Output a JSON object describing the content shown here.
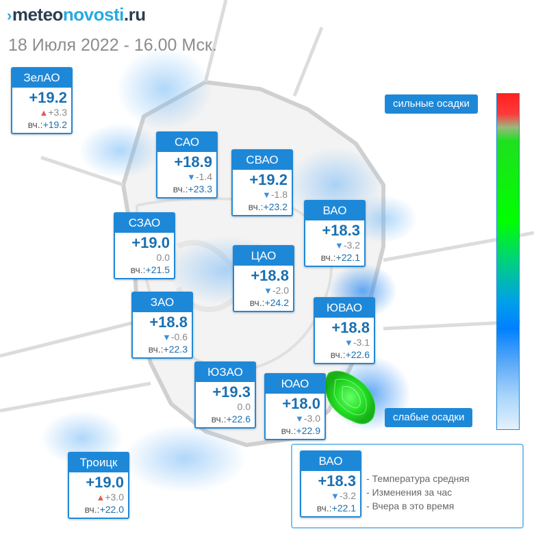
{
  "header": {
    "logo_part1": "meteo",
    "logo_part2": "novosti",
    "logo_part3": ".ru",
    "subtitle": "18 Июля 2022 - 16.00 Мск."
  },
  "yesterday_label": "вч.:",
  "districts": [
    {
      "name": "ЗелАО",
      "temp": "+19.2",
      "trend": "up",
      "change": "+3.3",
      "yesterday": "+19.2"
    },
    {
      "name": "САО",
      "temp": "+18.9",
      "trend": "down",
      "change": "-1.4",
      "yesterday": "+23.3"
    },
    {
      "name": "СВАО",
      "temp": "+19.2",
      "trend": "down",
      "change": "-1.8",
      "yesterday": "+23.2"
    },
    {
      "name": "ВАО",
      "temp": "+18.3",
      "trend": "down",
      "change": "-3.2",
      "yesterday": "+22.1"
    },
    {
      "name": "СЗАО",
      "temp": "+19.0",
      "trend": "none",
      "change": "0.0",
      "yesterday": "+21.5"
    },
    {
      "name": "ЦАО",
      "temp": "+18.8",
      "trend": "down",
      "change": "-2.0",
      "yesterday": "+24.2"
    },
    {
      "name": "ЗАО",
      "temp": "+18.8",
      "trend": "down",
      "change": "-0.6",
      "yesterday": "+22.3"
    },
    {
      "name": "ЮВАО",
      "temp": "+18.8",
      "trend": "down",
      "change": "-3.1",
      "yesterday": "+22.6"
    },
    {
      "name": "ЮЗАО",
      "temp": "+19.3",
      "trend": "none",
      "change": "0.0",
      "yesterday": "+22.6"
    },
    {
      "name": "ЮАО",
      "temp": "+18.0",
      "trend": "down",
      "change": "-3.0",
      "yesterday": "+22.9"
    },
    {
      "name": "Троицк",
      "temp": "+19.0",
      "trend": "up",
      "change": "+3.0",
      "yesterday": "+22.0"
    }
  ],
  "precip_scale": {
    "strong_label": "сильные осадки",
    "weak_label": "слабые осадки"
  },
  "legend": {
    "example": {
      "name": "ВАО",
      "temp": "+18.3",
      "trend": "down",
      "change": "-3.2",
      "yesterday": "+22.1"
    },
    "lines": [
      "- Температура средняя",
      "- Изменения за час",
      "- Вчера в это время"
    ]
  },
  "colors": {
    "accent": "#1e88d8",
    "up": "#e05a5a",
    "down": "#3a8fde",
    "precip_heavy": "#00ff00"
  }
}
